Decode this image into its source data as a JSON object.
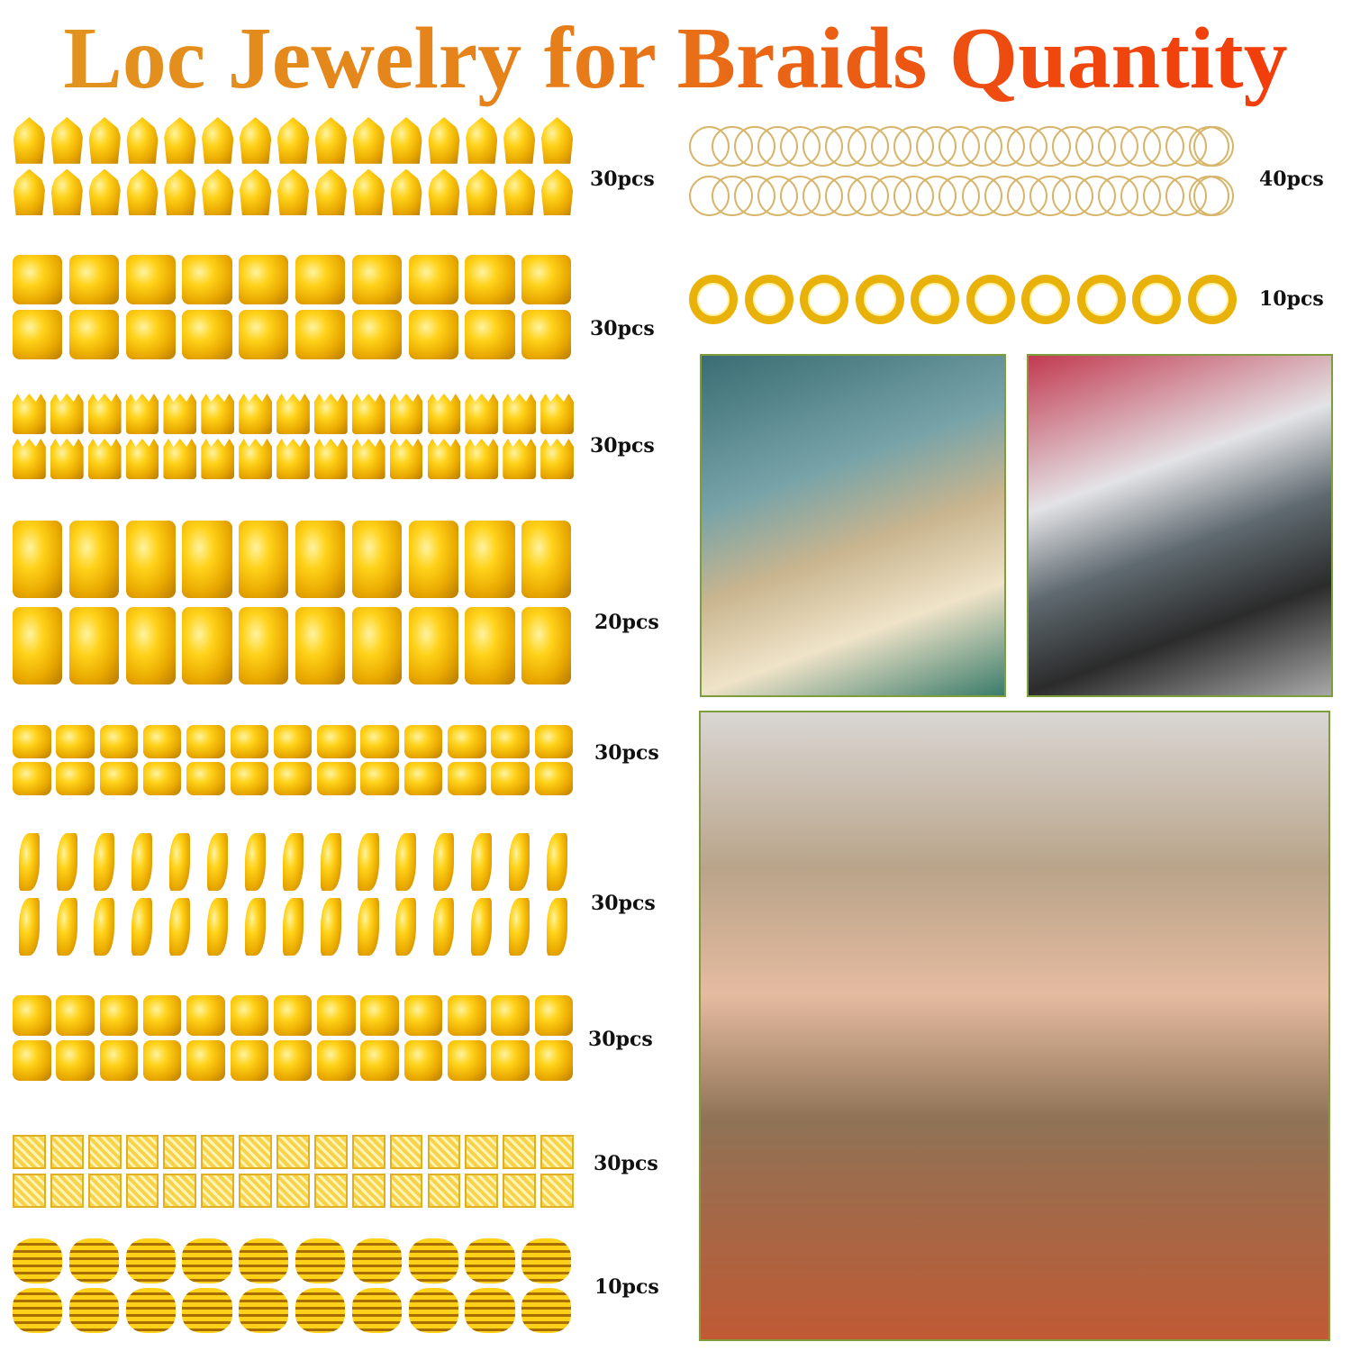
{
  "title": "Loc Jewelry for Braids Quantity",
  "colors": {
    "title_start": "#e2951f",
    "title_end": "#f23a08",
    "gold": "#e9a800",
    "photo_border": "#7e9e3e"
  },
  "left_items": [
    {
      "icon": "filigree-cone-icon",
      "shape": "cone",
      "columns": 15,
      "quantity": "30pcs"
    },
    {
      "icon": "hollow-tube-icon",
      "shape": "tube",
      "columns": 10,
      "quantity": "30pcs"
    },
    {
      "icon": "crown-cuff-icon",
      "shape": "crown",
      "columns": 15,
      "quantity": "30pcs"
    },
    {
      "icon": "large-tube-icon",
      "shape": "tube",
      "columns": 10,
      "quantity": "20pcs"
    },
    {
      "icon": "small-cuff-icon",
      "shape": "tube",
      "columns": 13,
      "quantity": "30pcs"
    },
    {
      "icon": "leaf-charm-icon",
      "shape": "leaf",
      "columns": 15,
      "quantity": "30pcs"
    },
    {
      "icon": "filigree-cuff-icon",
      "shape": "tube",
      "columns": 13,
      "quantity": "30pcs"
    },
    {
      "icon": "lattice-square-icon",
      "shape": "square",
      "columns": 15,
      "quantity": "30pcs"
    },
    {
      "icon": "spiral-coil-icon",
      "shape": "spiral",
      "columns": 10,
      "quantity": "10pcs"
    }
  ],
  "right_items": [
    {
      "icon": "thin-ring-icon",
      "shape": "ring",
      "columns": 24,
      "quantity": "40pcs"
    },
    {
      "icon": "twisted-ring-icon",
      "shape": "tring",
      "columns": 10,
      "quantity": "10pcs"
    }
  ],
  "photos": [
    {
      "name": "photo-braided-bun"
    },
    {
      "name": "photo-man-braids-mask"
    },
    {
      "name": "photo-woman-dreadlocks"
    }
  ]
}
